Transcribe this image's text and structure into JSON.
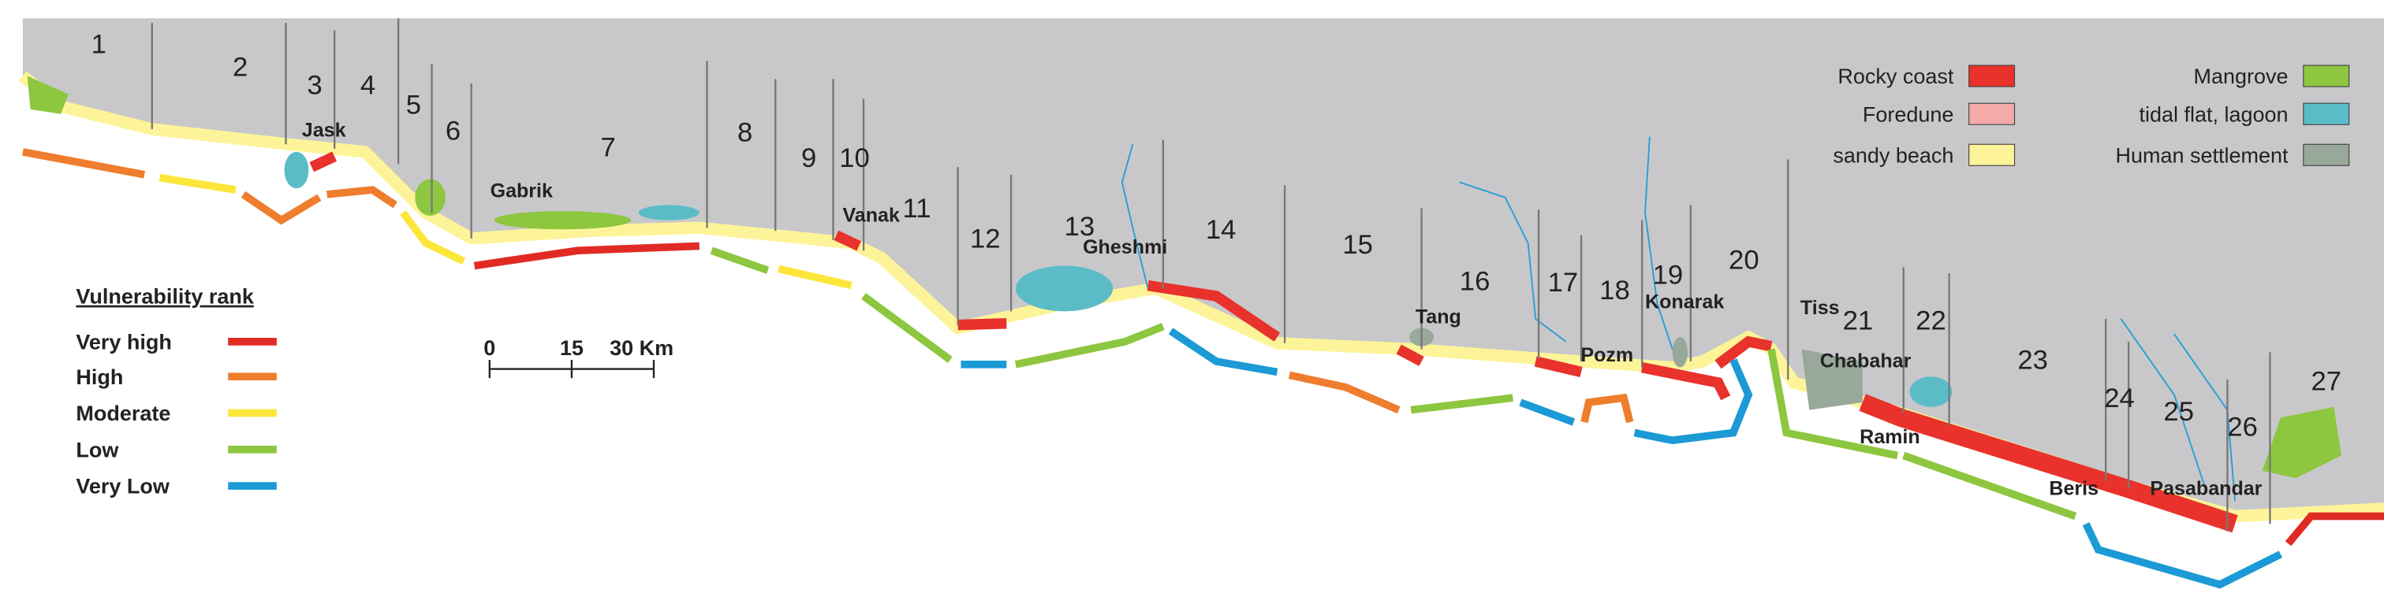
{
  "map": {
    "segments": [
      "1",
      "2",
      "3",
      "4",
      "5",
      "6",
      "7",
      "8",
      "9",
      "10",
      "11",
      "12",
      "13",
      "14",
      "15",
      "16",
      "17",
      "18",
      "19",
      "20",
      "21",
      "22",
      "23",
      "24",
      "25",
      "26",
      "27"
    ],
    "places": [
      "Jask",
      "Gabrik",
      "Vanak",
      "Gheshmi",
      "Tang",
      "Pozm",
      "Konarak",
      "Tiss",
      "Chabahar",
      "Ramin",
      "Beris",
      "Pasabandar"
    ],
    "landcover_legend": {
      "items": [
        {
          "label": "Rocky coast",
          "color": "#e8322b"
        },
        {
          "label": "Foredune",
          "color": "#f4aaa8"
        },
        {
          "label": "sandy beach",
          "color": "#fdf49a"
        },
        {
          "label": "Mangrove",
          "color": "#8dc63f"
        },
        {
          "label": "tidal flat, lagoon",
          "color": "#5bbcc8"
        },
        {
          "label": "Human settlement",
          "color": "#98a89a"
        }
      ]
    },
    "vulnerability_legend": {
      "title": "Vulnerability rank",
      "items": [
        {
          "label": "Very high",
          "color": "#e02b24"
        },
        {
          "label": "High",
          "color": "#ef7d2e"
        },
        {
          "label": "Moderate",
          "color": "#fde63a"
        },
        {
          "label": "Low",
          "color": "#8dc63f"
        },
        {
          "label": "Very Low",
          "color": "#1b9ad6"
        }
      ]
    },
    "scale_bar": {
      "labels": [
        "0",
        "15",
        "30 Km"
      ]
    }
  }
}
